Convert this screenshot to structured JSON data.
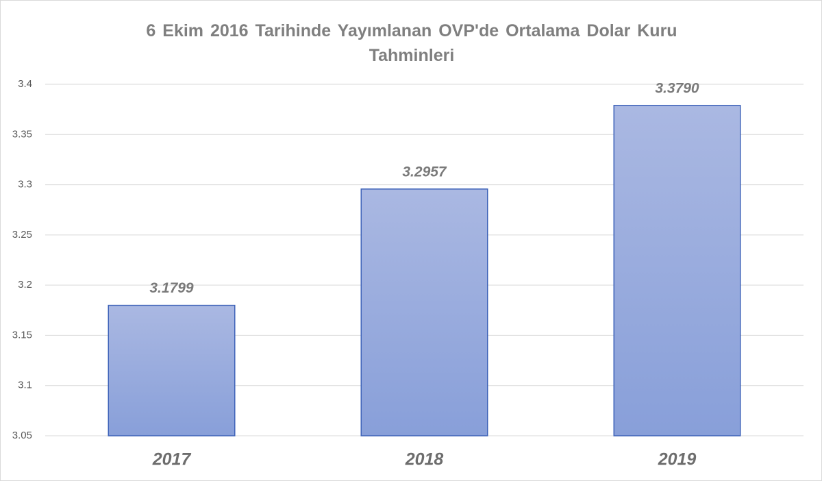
{
  "chart_data": {
    "type": "bar",
    "title": "6 Ekim 2016 Tarihinde Yayımlanan OVP'de Ortalama Dolar Kuru Tahminleri",
    "categories": [
      "2017",
      "2018",
      "2019"
    ],
    "values": [
      3.1799,
      3.2957,
      3.379
    ],
    "value_labels": [
      "3.1799",
      "3.2957",
      "3.3790"
    ],
    "color": "#8fa3da",
    "ylim": [
      3.05,
      3.4
    ],
    "yticks": [
      3.05,
      3.1,
      3.15,
      3.2,
      3.25,
      3.3,
      3.35,
      3.4
    ],
    "grid": true
  }
}
